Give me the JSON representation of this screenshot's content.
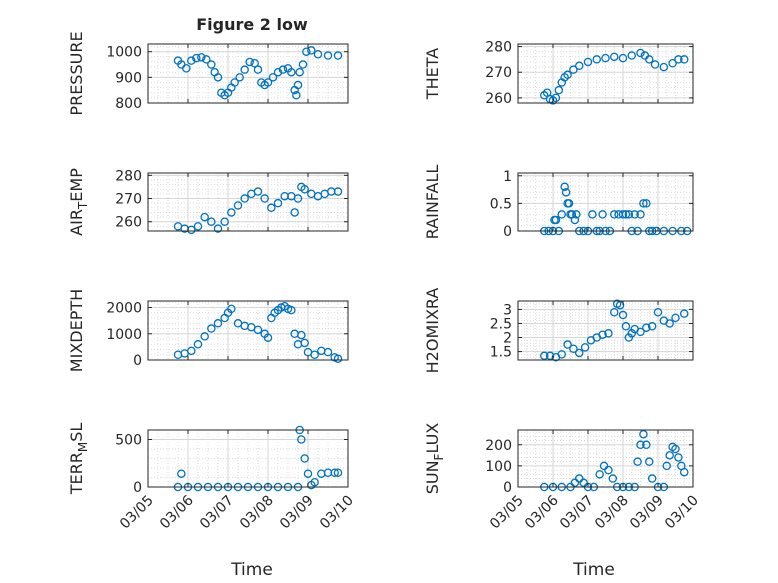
{
  "figure": {
    "title": "Figure 2 low",
    "xlabel": "Time",
    "date_ticks": [
      "03/05",
      "03/06",
      "03/07",
      "03/08",
      "03/09",
      "03/10"
    ]
  },
  "colors": {
    "marker": "#0072BD",
    "axis": "#262626",
    "grid": "#d6d6d6"
  },
  "chart_data": [
    {
      "type": "scatter",
      "ylabel": "PRESSURE",
      "ylim": [
        800,
        1030
      ],
      "yticks": [
        "1000",
        "900",
        "800"
      ],
      "ytick_values": [
        1000,
        900,
        800
      ],
      "x": [
        "03/05 18:00",
        "03/05 20:00",
        "03/05 23:00",
        "03/06 02:00",
        "03/06 05:00",
        "03/06 08:00",
        "03/06 11:00",
        "03/06 14:00",
        "03/06 16:00",
        "03/06 18:00",
        "03/06 20:00",
        "03/06 22:00",
        "03/07 00:00",
        "03/07 02:00",
        "03/07 04:00",
        "03/07 07:00",
        "03/07 10:00",
        "03/07 13:00",
        "03/07 16:00",
        "03/07 18:00",
        "03/07 20:00",
        "03/07 22:00",
        "03/08 00:00",
        "03/08 03:00",
        "03/08 06:00",
        "03/08 09:00",
        "03/08 12:00",
        "03/08 14:00",
        "03/08 16:00",
        "03/08 17:00",
        "03/08 18:00",
        "03/08 19:00",
        "03/08 21:00",
        "03/08 23:00",
        "03/09 02:00",
        "03/09 06:00",
        "03/09 12:00",
        "03/09 18:00"
      ],
      "values": [
        965,
        950,
        935,
        965,
        975,
        978,
        970,
        950,
        920,
        900,
        840,
        830,
        840,
        860,
        880,
        900,
        930,
        960,
        955,
        930,
        880,
        870,
        880,
        900,
        920,
        930,
        935,
        920,
        850,
        830,
        870,
        920,
        950,
        1000,
        1005,
        990,
        985,
        985
      ]
    },
    {
      "type": "scatter",
      "ylabel": "THETA",
      "ylim": [
        258,
        281
      ],
      "yticks": [
        "280",
        "270",
        "260"
      ],
      "ytick_values": [
        280,
        270,
        260
      ],
      "x": [
        "03/05 18:00",
        "03/05 20:00",
        "03/05 22:00",
        "03/06 00:00",
        "03/06 02:00",
        "03/06 04:00",
        "03/06 06:00",
        "03/06 08:00",
        "03/06 10:00",
        "03/06 14:00",
        "03/06 18:00",
        "03/07 00:00",
        "03/07 06:00",
        "03/07 12:00",
        "03/07 18:00",
        "03/08 00:00",
        "03/08 06:00",
        "03/08 12:00",
        "03/08 15:00",
        "03/08 18:00",
        "03/08 22:00",
        "03/09 04:00",
        "03/09 10:00",
        "03/09 14:00",
        "03/09 18:00"
      ],
      "values": [
        261,
        262,
        259.5,
        259,
        260,
        263,
        266,
        268,
        269,
        271,
        272.5,
        274,
        275,
        275.5,
        276,
        275.5,
        276.5,
        277.5,
        276.5,
        275,
        273,
        272,
        273.5,
        275,
        275
      ]
    },
    {
      "type": "scatter",
      "ylabel": "AIR_TEMP",
      "ylim": [
        256,
        281
      ],
      "yticks": [
        "280",
        "270",
        "260"
      ],
      "ytick_values": [
        280,
        270,
        260
      ],
      "x": [
        "03/05 18:00",
        "03/05 22:00",
        "03/06 02:00",
        "03/06 06:00",
        "03/06 10:00",
        "03/06 14:00",
        "03/06 18:00",
        "03/06 22:00",
        "03/07 02:00",
        "03/07 06:00",
        "03/07 10:00",
        "03/07 14:00",
        "03/07 18:00",
        "03/07 22:00",
        "03/08 02:00",
        "03/08 06:00",
        "03/08 10:00",
        "03/08 14:00",
        "03/08 16:00",
        "03/08 18:00",
        "03/08 20:00",
        "03/08 22:00",
        "03/09 02:00",
        "03/09 06:00",
        "03/09 10:00",
        "03/09 14:00",
        "03/09 18:00"
      ],
      "values": [
        258,
        257,
        256.5,
        258,
        262,
        260,
        257,
        260,
        264,
        267,
        270,
        272,
        273,
        270,
        266,
        268,
        271,
        271,
        264,
        270,
        275,
        274,
        272,
        271,
        272,
        273,
        273
      ]
    },
    {
      "type": "scatter",
      "ylabel": "RAINFALL",
      "ylim": [
        0,
        1.05
      ],
      "yticks": [
        "1",
        "0.5",
        "0"
      ],
      "ytick_values": [
        1,
        0.5,
        0
      ],
      "x": [
        "03/05 18:00",
        "03/05 21:00",
        "03/06 00:00",
        "03/06 01:00",
        "03/06 02:00",
        "03/06 04:00",
        "03/06 06:00",
        "03/06 08:00",
        "03/06 09:00",
        "03/06 10:00",
        "03/06 11:00",
        "03/06 12:00",
        "03/06 13:00",
        "03/06 15:00",
        "03/06 16:00",
        "03/06 18:00",
        "03/06 21:00",
        "03/07 00:00",
        "03/07 03:00",
        "03/07 06:00",
        "03/07 08:00",
        "03/07 10:00",
        "03/07 12:00",
        "03/07 15:00",
        "03/07 18:00",
        "03/07 21:00",
        "03/08 00:00",
        "03/08 02:00",
        "03/08 04:00",
        "03/08 06:00",
        "03/08 08:00",
        "03/08 10:00",
        "03/08 12:00",
        "03/08 14:00",
        "03/08 16:00",
        "03/08 18:00",
        "03/08 20:00",
        "03/08 23:00",
        "03/09 04:00",
        "03/09 10:00",
        "03/09 16:00",
        "03/09 20:00"
      ],
      "values": [
        0,
        0,
        0,
        0.2,
        0.2,
        0,
        0.3,
        0.8,
        0.7,
        0.5,
        0.5,
        0.3,
        0.3,
        0.2,
        0.3,
        0,
        0,
        0,
        0.3,
        0,
        0,
        0.3,
        0,
        0,
        0.3,
        0.3,
        0.3,
        0.3,
        0.3,
        0,
        0.3,
        0,
        0.3,
        0.5,
        0.5,
        0,
        0,
        0,
        0,
        0,
        0,
        0
      ]
    },
    {
      "type": "scatter",
      "ylabel": "MIXDEPTH",
      "ylim": [
        0,
        2250
      ],
      "yticks": [
        "2000",
        "1000",
        "0"
      ],
      "ytick_values": [
        2000,
        1000,
        0
      ],
      "x": [
        "03/05 18:00",
        "03/05 22:00",
        "03/06 02:00",
        "03/06 06:00",
        "03/06 10:00",
        "03/06 14:00",
        "03/06 18:00",
        "03/06 22:00",
        "03/07 00:00",
        "03/07 02:00",
        "03/07 06:00",
        "03/07 10:00",
        "03/07 14:00",
        "03/07 18:00",
        "03/07 22:00",
        "03/08 00:00",
        "03/08 02:00",
        "03/08 04:00",
        "03/08 06:00",
        "03/08 08:00",
        "03/08 10:00",
        "03/08 12:00",
        "03/08 14:00",
        "03/08 16:00",
        "03/08 18:00",
        "03/08 20:00",
        "03/08 22:00",
        "03/09 00:00",
        "03/09 04:00",
        "03/09 08:00",
        "03/09 12:00",
        "03/09 16:00",
        "03/09 18:00"
      ],
      "values": [
        200,
        250,
        350,
        600,
        900,
        1200,
        1400,
        1600,
        1800,
        1950,
        1400,
        1300,
        1250,
        1150,
        1000,
        850,
        1600,
        1800,
        1900,
        2000,
        2050,
        1950,
        1900,
        1000,
        600,
        950,
        650,
        300,
        200,
        350,
        300,
        100,
        50
      ]
    },
    {
      "type": "scatter",
      "ylabel": "H2OMIXRA",
      "ylim": [
        1.2,
        3.3
      ],
      "yticks": [
        "3",
        "2.5",
        "2",
        "1.5"
      ],
      "ytick_values": [
        3,
        2.5,
        2,
        1.5
      ],
      "x": [
        "03/05 18:00",
        "03/05 22:00",
        "03/06 02:00",
        "03/06 06:00",
        "03/06 10:00",
        "03/06 14:00",
        "03/06 18:00",
        "03/06 22:00",
        "03/07 02:00",
        "03/07 06:00",
        "03/07 10:00",
        "03/07 14:00",
        "03/07 18:00",
        "03/07 20:00",
        "03/07 22:00",
        "03/08 00:00",
        "03/08 02:00",
        "03/08 04:00",
        "03/08 06:00",
        "03/08 08:00",
        "03/08 12:00",
        "03/08 16:00",
        "03/08 20:00",
        "03/09 00:00",
        "03/09 04:00",
        "03/09 08:00",
        "03/09 12:00",
        "03/09 18:00"
      ],
      "values": [
        1.35,
        1.35,
        1.3,
        1.4,
        1.75,
        1.6,
        1.45,
        1.65,
        1.9,
        2.0,
        2.1,
        2.15,
        2.9,
        3.2,
        3.15,
        2.8,
        2.4,
        2.0,
        2.15,
        2.3,
        2.2,
        2.35,
        2.4,
        2.9,
        2.6,
        2.5,
        2.7,
        2.85
      ]
    },
    {
      "type": "scatter",
      "ylabel": "TERR_MSL",
      "ylim": [
        0,
        600
      ],
      "yticks": [
        "500",
        "0"
      ],
      "ytick_values": [
        500,
        0
      ],
      "x": [
        "03/05 18:00",
        "03/05 20:00",
        "03/06 00:00",
        "03/06 06:00",
        "03/06 12:00",
        "03/06 18:00",
        "03/07 00:00",
        "03/07 06:00",
        "03/07 12:00",
        "03/07 18:00",
        "03/08 00:00",
        "03/08 06:00",
        "03/08 12:00",
        "03/08 18:00",
        "03/08 19:00",
        "03/08 20:00",
        "03/08 22:00",
        "03/09 00:00",
        "03/09 02:00",
        "03/09 04:00",
        "03/09 08:00",
        "03/09 12:00",
        "03/09 16:00",
        "03/09 18:00"
      ],
      "values": [
        0,
        140,
        0,
        0,
        0,
        0,
        0,
        0,
        0,
        0,
        0,
        0,
        0,
        0,
        600,
        500,
        300,
        140,
        20,
        50,
        140,
        150,
        150,
        150
      ]
    },
    {
      "type": "scatter",
      "ylabel": "SUN_FLUX",
      "ylim": [
        0,
        270
      ],
      "yticks": [
        "200",
        "100",
        "0"
      ],
      "ytick_values": [
        200,
        100,
        0
      ],
      "x": [
        "03/05 18:00",
        "03/06 00:00",
        "03/06 06:00",
        "03/06 12:00",
        "03/06 15:00",
        "03/06 18:00",
        "03/06 21:00",
        "03/07 00:00",
        "03/07 04:00",
        "03/07 08:00",
        "03/07 11:00",
        "03/07 14:00",
        "03/07 17:00",
        "03/07 20:00",
        "03/08 00:00",
        "03/08 04:00",
        "03/08 08:00",
        "03/08 10:00",
        "03/08 12:00",
        "03/08 14:00",
        "03/08 16:00",
        "03/08 18:00",
        "03/08 20:00",
        "03/09 00:00",
        "03/09 04:00",
        "03/09 06:00",
        "03/09 08:00",
        "03/09 10:00",
        "03/09 12:00",
        "03/09 14:00",
        "03/09 16:00",
        "03/09 18:00"
      ],
      "values": [
        0,
        0,
        0,
        0,
        20,
        40,
        20,
        0,
        0,
        60,
        100,
        80,
        40,
        0,
        0,
        0,
        0,
        120,
        200,
        250,
        200,
        120,
        40,
        0,
        0,
        100,
        150,
        190,
        180,
        140,
        100,
        70
      ]
    }
  ]
}
